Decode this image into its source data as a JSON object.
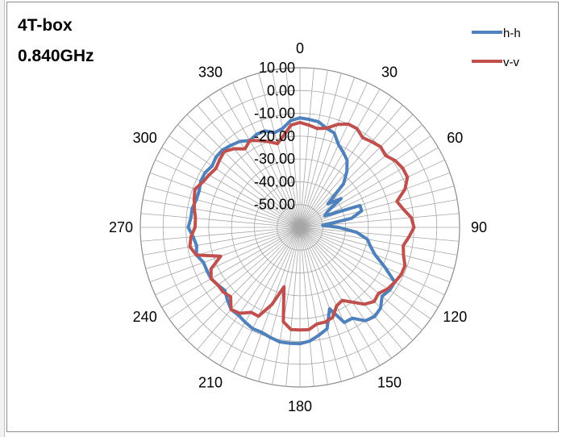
{
  "chart_data": {
    "type": "polar-line",
    "title_lines": [
      "4T-box",
      "0.840GHz"
    ],
    "angle_labels": [
      "0",
      "30",
      "60",
      "90",
      "120",
      "150",
      "180",
      "210",
      "240",
      "270",
      "300",
      "330"
    ],
    "radial_labels": [
      "10.00",
      "0.00",
      "-10.00",
      "-20.00",
      "-30.00",
      "-40.00",
      "-50.00"
    ],
    "rlim": [
      -60,
      10
    ],
    "radial_step": 10,
    "angle_step_deg": 5,
    "grid": true,
    "legend_position": "top-right",
    "series": [
      {
        "name": "h-h",
        "color": "#4f81bd",
        "angles": [
          0,
          5,
          10,
          15,
          20,
          25,
          30,
          35,
          40,
          45,
          50,
          55,
          60,
          65,
          70,
          75,
          80,
          85,
          90,
          95,
          100,
          105,
          110,
          115,
          120,
          125,
          130,
          135,
          140,
          145,
          150,
          155,
          160,
          165,
          170,
          175,
          180,
          185,
          190,
          195,
          200,
          205,
          210,
          215,
          220,
          225,
          230,
          235,
          240,
          245,
          250,
          255,
          260,
          265,
          270,
          275,
          280,
          285,
          290,
          295,
          300,
          305,
          310,
          315,
          320,
          325,
          330,
          335,
          340,
          345,
          350,
          355
        ],
        "values": [
          -12,
          -12.5,
          -13,
          -15,
          -16,
          -20,
          -22,
          -24,
          -28,
          -33,
          -44,
          -38,
          -46,
          -48,
          -32,
          -32,
          -37,
          -50,
          -43,
          -35,
          -30,
          -28,
          -25,
          -19,
          -12,
          -12,
          -13,
          -10,
          -9,
          -10,
          -14,
          -14,
          -22,
          -14,
          -12,
          -10,
          -9,
          -9,
          -9,
          -10,
          -11,
          -11,
          -12,
          -13,
          -13,
          -15,
          -17,
          -16,
          -15,
          -15,
          -15,
          -13,
          -14,
          -13,
          -11,
          -12,
          -12,
          -13,
          -13,
          -12,
          -12,
          -13,
          -12,
          -12,
          -13,
          -14,
          -16,
          -15,
          -15,
          -17,
          -16,
          -13
        ]
      },
      {
        "name": "v-v",
        "color": "#c0504d",
        "angles": [
          0,
          5,
          10,
          15,
          20,
          25,
          30,
          35,
          40,
          45,
          50,
          55,
          60,
          65,
          70,
          75,
          80,
          85,
          90,
          95,
          100,
          105,
          110,
          115,
          120,
          125,
          130,
          135,
          140,
          145,
          150,
          155,
          160,
          165,
          170,
          175,
          180,
          185,
          190,
          195,
          200,
          205,
          210,
          215,
          220,
          225,
          230,
          235,
          240,
          245,
          250,
          255,
          260,
          265,
          270,
          275,
          280,
          285,
          290,
          295,
          300,
          305,
          310,
          315,
          320,
          325,
          330,
          335,
          340,
          345,
          350,
          355
        ],
        "values": [
          -14,
          -15,
          -16,
          -15,
          -12,
          -10,
          -10,
          -12,
          -11,
          -10,
          -11,
          -9,
          -8,
          -8,
          -11,
          -16,
          -14,
          -11,
          -10,
          -12,
          -14,
          -13,
          -11,
          -11,
          -12,
          -13,
          -15,
          -14,
          -16,
          -20,
          -23,
          -22,
          -18,
          -17,
          -17,
          -15,
          -15,
          -15,
          -18,
          -33,
          -24,
          -17,
          -17,
          -14,
          -13,
          -17,
          -16,
          -16,
          -15,
          -17,
          -23,
          -13,
          -11,
          -12,
          -14,
          -14,
          -13,
          -12,
          -11,
          -13,
          -14,
          -15,
          -14,
          -13,
          -15,
          -18,
          -16,
          -18,
          -20,
          -22,
          -19,
          -15
        ]
      }
    ]
  }
}
